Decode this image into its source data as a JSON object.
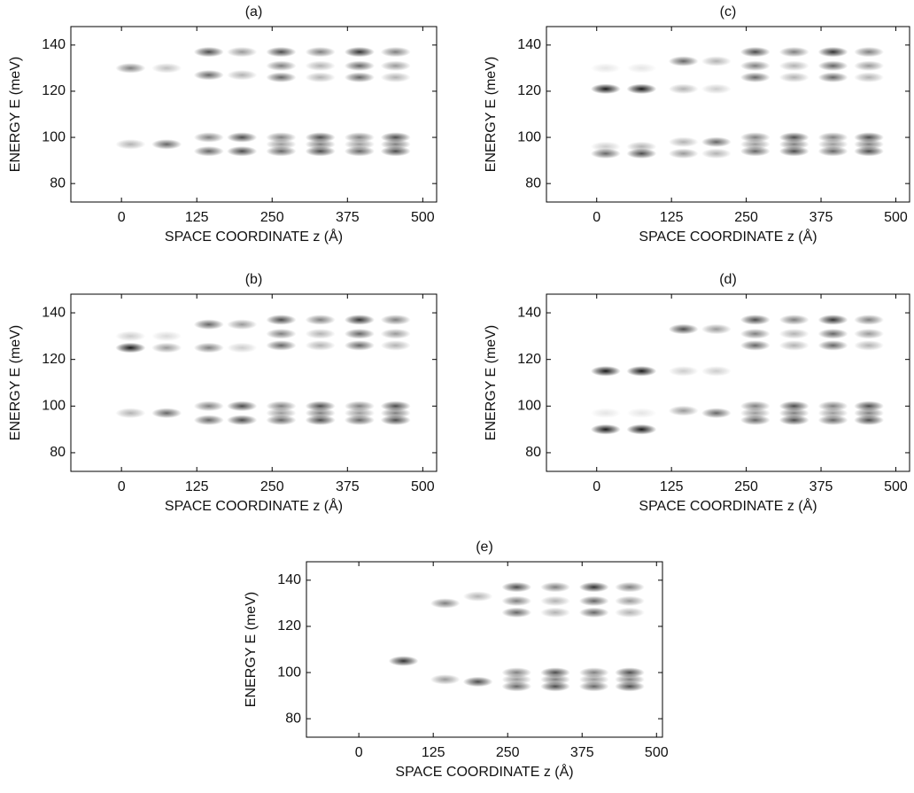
{
  "chart_data": [
    {
      "type": "heatmap",
      "title": "(a)",
      "xlabel": "SPACE COORDINATE  z (Å)",
      "ylabel": "ENERGY  E (meV)",
      "xlim": [
        -84,
        523
      ],
      "ylim": [
        72,
        148
      ],
      "xticks": [
        0,
        125,
        250,
        375,
        500
      ],
      "yticks": [
        80,
        100,
        120,
        140
      ],
      "x": [
        15,
        75,
        145,
        145,
        200,
        200,
        15,
        75,
        145,
        145,
        200,
        200,
        265,
        265,
        265,
        330,
        330,
        330,
        395,
        395,
        395,
        455,
        455,
        455,
        265,
        265,
        265,
        330,
        330,
        330,
        395,
        395,
        395,
        455,
        455,
        455
      ],
      "values": [
        130,
        130,
        137,
        127,
        137,
        127,
        97,
        97,
        100,
        94,
        100,
        94,
        137,
        131,
        126,
        137,
        131,
        126,
        137,
        131,
        126,
        137,
        131,
        126,
        100,
        97,
        94,
        100,
        97,
        94,
        100,
        97,
        94,
        100,
        97,
        94
      ],
      "intensity": [
        0.5,
        0.25,
        0.7,
        0.6,
        0.4,
        0.3,
        0.3,
        0.6,
        0.5,
        0.6,
        0.7,
        0.7,
        0.7,
        0.5,
        0.6,
        0.5,
        0.3,
        0.3,
        0.8,
        0.6,
        0.6,
        0.5,
        0.4,
        0.3,
        0.5,
        0.4,
        0.6,
        0.7,
        0.5,
        0.7,
        0.5,
        0.4,
        0.6,
        0.7,
        0.5,
        0.7
      ]
    },
    {
      "type": "heatmap",
      "title": "(c)",
      "xlabel": "SPACE COORDINATE  z (Å)",
      "ylabel": "ENERGY  E (meV)",
      "xlim": [
        -84,
        523
      ],
      "ylim": [
        72,
        148
      ],
      "xticks": [
        0,
        125,
        250,
        375,
        500
      ],
      "yticks": [
        80,
        100,
        120,
        140
      ],
      "x": [
        15,
        75,
        15,
        75,
        145,
        200,
        145,
        200,
        15,
        15,
        75,
        75,
        145,
        145,
        200,
        200,
        265,
        265,
        265,
        330,
        330,
        330,
        395,
        395,
        395,
        455,
        455,
        455,
        265,
        265,
        265,
        330,
        330,
        330,
        395,
        395,
        395,
        455,
        455,
        455
      ],
      "values": [
        121,
        121,
        130,
        130,
        133,
        133,
        121,
        121,
        96,
        93,
        96,
        93,
        98,
        93,
        98,
        93,
        137,
        131,
        126,
        137,
        131,
        126,
        137,
        131,
        126,
        137,
        131,
        126,
        100,
        97,
        94,
        100,
        97,
        94,
        100,
        97,
        94,
        100,
        97,
        94
      ],
      "intensity": [
        0.9,
        0.9,
        0.1,
        0.1,
        0.6,
        0.3,
        0.3,
        0.2,
        0.2,
        0.6,
        0.3,
        0.7,
        0.3,
        0.4,
        0.6,
        0.3,
        0.7,
        0.5,
        0.6,
        0.5,
        0.3,
        0.3,
        0.8,
        0.6,
        0.6,
        0.5,
        0.4,
        0.3,
        0.5,
        0.4,
        0.6,
        0.7,
        0.5,
        0.7,
        0.5,
        0.4,
        0.6,
        0.7,
        0.5,
        0.7
      ]
    },
    {
      "type": "heatmap",
      "title": "(b)",
      "xlabel": "SPACE COORDINATE  z (Å)",
      "ylabel": "ENERGY  E (meV)",
      "xlim": [
        -84,
        523
      ],
      "ylim": [
        72,
        148
      ],
      "xticks": [
        0,
        125,
        250,
        375,
        500
      ],
      "yticks": [
        80,
        100,
        120,
        140
      ],
      "x": [
        15,
        75,
        15,
        75,
        145,
        145,
        200,
        200,
        15,
        75,
        145,
        145,
        200,
        200,
        265,
        265,
        265,
        330,
        330,
        330,
        395,
        395,
        395,
        455,
        455,
        455,
        265,
        265,
        265,
        330,
        330,
        330,
        395,
        395,
        395,
        455,
        455,
        455
      ],
      "values": [
        125,
        125,
        130,
        130,
        135,
        125,
        135,
        125,
        97,
        97,
        100,
        94,
        100,
        94,
        137,
        131,
        126,
        137,
        131,
        126,
        137,
        131,
        126,
        137,
        131,
        126,
        100,
        97,
        94,
        100,
        97,
        94,
        100,
        97,
        94,
        100,
        97,
        94
      ],
      "intensity": [
        0.9,
        0.4,
        0.2,
        0.15,
        0.6,
        0.5,
        0.4,
        0.2,
        0.3,
        0.6,
        0.5,
        0.6,
        0.7,
        0.7,
        0.7,
        0.5,
        0.6,
        0.5,
        0.3,
        0.3,
        0.8,
        0.6,
        0.6,
        0.5,
        0.4,
        0.3,
        0.5,
        0.4,
        0.6,
        0.7,
        0.5,
        0.7,
        0.5,
        0.4,
        0.6,
        0.7,
        0.5,
        0.7
      ]
    },
    {
      "type": "heatmap",
      "title": "(d)",
      "xlabel": "SPACE COORDINATE  z (Å)",
      "ylabel": "ENERGY  E (meV)",
      "xlim": [
        -84,
        523
      ],
      "ylim": [
        72,
        148
      ],
      "xticks": [
        0,
        125,
        250,
        375,
        500
      ],
      "yticks": [
        80,
        100,
        120,
        140
      ],
      "x": [
        15,
        75,
        145,
        200,
        15,
        75,
        15,
        75,
        145,
        200,
        145,
        200,
        265,
        265,
        265,
        330,
        330,
        330,
        395,
        395,
        395,
        455,
        455,
        455,
        265,
        265,
        265,
        330,
        330,
        330,
        395,
        395,
        395,
        455,
        455,
        455
      ],
      "values": [
        115,
        115,
        115,
        115,
        90,
        90,
        97,
        97,
        133,
        133,
        98,
        97,
        137,
        131,
        126,
        137,
        131,
        126,
        137,
        131,
        126,
        137,
        131,
        126,
        100,
        97,
        94,
        100,
        97,
        94,
        100,
        97,
        94,
        100,
        97,
        94
      ],
      "intensity": [
        0.9,
        0.9,
        0.2,
        0.2,
        0.9,
        0.9,
        0.1,
        0.1,
        0.7,
        0.4,
        0.4,
        0.6,
        0.7,
        0.5,
        0.6,
        0.5,
        0.3,
        0.3,
        0.8,
        0.6,
        0.6,
        0.5,
        0.4,
        0.3,
        0.5,
        0.4,
        0.6,
        0.7,
        0.5,
        0.7,
        0.5,
        0.4,
        0.6,
        0.7,
        0.5,
        0.7
      ]
    },
    {
      "type": "heatmap",
      "title": "(e)",
      "xlabel": "SPACE COORDINATE  z (Å)",
      "ylabel": "ENERGY  E (meV)",
      "xlim": [
        -88,
        510
      ],
      "ylim": [
        72,
        148
      ],
      "xticks": [
        0,
        125,
        250,
        375,
        500
      ],
      "yticks": [
        80,
        100,
        120,
        140
      ],
      "x": [
        75,
        145,
        200,
        145,
        200,
        265,
        265,
        265,
        330,
        330,
        330,
        395,
        395,
        395,
        455,
        455,
        455,
        265,
        265,
        265,
        330,
        330,
        330,
        395,
        395,
        395,
        455,
        455,
        455
      ],
      "values": [
        105,
        130,
        133,
        97,
        96,
        137,
        131,
        126,
        137,
        131,
        126,
        137,
        131,
        126,
        137,
        131,
        126,
        100,
        97,
        94,
        100,
        97,
        94,
        100,
        97,
        94,
        100,
        97,
        94
      ],
      "intensity": [
        0.8,
        0.5,
        0.3,
        0.4,
        0.7,
        0.7,
        0.5,
        0.6,
        0.5,
        0.3,
        0.3,
        0.8,
        0.6,
        0.6,
        0.5,
        0.4,
        0.3,
        0.5,
        0.4,
        0.6,
        0.7,
        0.5,
        0.7,
        0.5,
        0.4,
        0.6,
        0.7,
        0.5,
        0.7
      ]
    }
  ]
}
